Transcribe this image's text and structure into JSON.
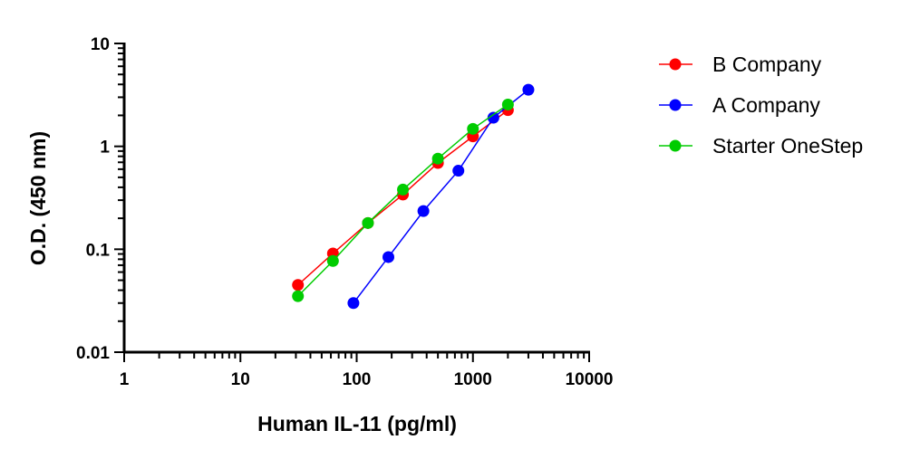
{
  "chart_data": {
    "type": "line",
    "xlabel": "Human IL-11 (pg/ml)",
    "ylabel": "O.D. (450 nm)",
    "xscale": "log",
    "yscale": "log",
    "xlim": [
      1,
      10000
    ],
    "ylim": [
      0.01,
      10
    ],
    "x_tick_labels": [
      "1",
      "10",
      "100",
      "1000",
      "10000"
    ],
    "y_tick_labels": [
      "0.01",
      "0.1",
      "1",
      "10"
    ],
    "grid": false,
    "legend_position": "right",
    "series": [
      {
        "name": "B Company",
        "color": "#ff0000",
        "x": [
          31.25,
          62.5,
          125,
          250,
          500,
          1000,
          2000
        ],
        "y": [
          0.045,
          0.091,
          0.18,
          0.34,
          0.69,
          1.25,
          2.25
        ]
      },
      {
        "name": "A Company",
        "color": "#0000ff",
        "x": [
          93.75,
          187.5,
          375,
          750,
          1500,
          3000
        ],
        "y": [
          0.03,
          0.084,
          0.235,
          0.58,
          1.9,
          3.55
        ]
      },
      {
        "name": "Starter OneStep",
        "color": "#00cc00",
        "x": [
          31.25,
          62.5,
          125,
          250,
          500,
          1000,
          2000
        ],
        "y": [
          0.035,
          0.077,
          0.18,
          0.38,
          0.76,
          1.48,
          2.55
        ]
      }
    ]
  }
}
